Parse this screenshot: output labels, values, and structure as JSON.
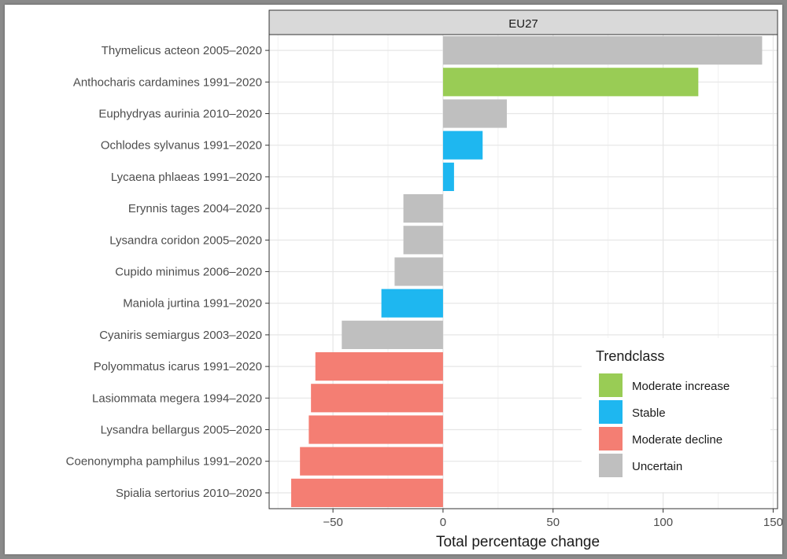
{
  "chart_data": {
    "type": "bar",
    "orientation": "horizontal",
    "facet_label": "EU27",
    "xlabel": "Total percentage change",
    "ylabel": "",
    "xlim": [
      -79,
      152
    ],
    "xticks": [
      -50,
      0,
      50,
      100,
      150
    ],
    "xtick_labels": [
      "−50",
      "0",
      "50",
      "100",
      "150"
    ],
    "grid": true,
    "legend": {
      "title": "Trendclass",
      "position": "bottom-right",
      "entries": [
        {
          "label": "Moderate increase",
          "color": "#99cc55"
        },
        {
          "label": "Stable",
          "color": "#1eb7f0"
        },
        {
          "label": "Moderate decline",
          "color": "#f47e73"
        },
        {
          "label": "Uncertain",
          "color": "#bfbfbf"
        }
      ]
    },
    "bars": [
      {
        "label": "Thymelicus acteon 2005–2020",
        "value": 145,
        "trendclass": "Uncertain"
      },
      {
        "label": "Anthocharis cardamines 1991–2020",
        "value": 116,
        "trendclass": "Moderate increase"
      },
      {
        "label": "Euphydryas aurinia 2010–2020",
        "value": 29,
        "trendclass": "Uncertain"
      },
      {
        "label": "Ochlodes sylvanus 1991–2020",
        "value": 18,
        "trendclass": "Stable"
      },
      {
        "label": "Lycaena phlaeas 1991–2020",
        "value": 5,
        "trendclass": "Stable"
      },
      {
        "label": "Erynnis tages 2004–2020",
        "value": -18,
        "trendclass": "Uncertain"
      },
      {
        "label": "Lysandra coridon 2005–2020",
        "value": -18,
        "trendclass": "Uncertain"
      },
      {
        "label": "Cupido minimus 2006–2020",
        "value": -22,
        "trendclass": "Uncertain"
      },
      {
        "label": "Maniola jurtina 1991–2020",
        "value": -28,
        "trendclass": "Stable"
      },
      {
        "label": "Cyaniris semiargus 2003–2020",
        "value": -46,
        "trendclass": "Uncertain"
      },
      {
        "label": "Polyommatus icarus 1991–2020",
        "value": -58,
        "trendclass": "Moderate decline"
      },
      {
        "label": "Lasiommata megera 1994–2020",
        "value": -60,
        "trendclass": "Moderate decline"
      },
      {
        "label": "Lysandra bellargus 2005–2020",
        "value": -61,
        "trendclass": "Moderate decline"
      },
      {
        "label": "Coenonympha pamphilus 1991–2020",
        "value": -65,
        "trendclass": "Moderate decline"
      },
      {
        "label": "Spialia sertorius 2010–2020",
        "value": -69,
        "trendclass": "Moderate decline"
      }
    ]
  }
}
